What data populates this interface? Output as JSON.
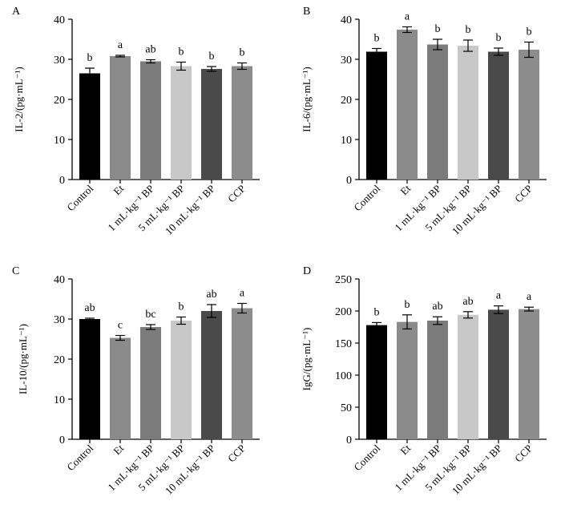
{
  "categories": [
    "Control",
    "Et",
    "1 mL·kg⁻¹ BP",
    "5 mL·kg⁻¹ BP",
    "10 mL·kg⁻¹ BP",
    "CCP"
  ],
  "bar_colors": [
    "#000000",
    "#8a8a8a",
    "#7b7b7b",
    "#c8c8c8",
    "#4a4a4a",
    "#8c8c8c"
  ],
  "chart_data": [
    {
      "panel": "A",
      "type": "bar",
      "ylabel": "IL-2/(pg·mL⁻¹)",
      "ylim": [
        0,
        40
      ],
      "yticks": [
        0,
        10,
        20,
        30,
        40
      ],
      "categories": [
        "Control",
        "Et",
        "1 mL·kg⁻¹ BP",
        "5 mL·kg⁻¹ BP",
        "10 mL·kg⁻¹ BP",
        "CCP"
      ],
      "values": [
        26.5,
        30.8,
        29.5,
        28.3,
        27.6,
        28.3
      ],
      "errors": [
        1.3,
        0.2,
        0.4,
        1.0,
        0.6,
        0.8
      ],
      "significance": [
        "b",
        "a",
        "ab",
        "b",
        "b",
        "b"
      ]
    },
    {
      "panel": "B",
      "type": "bar",
      "ylabel": "IL-6/(pg·mL⁻¹)",
      "ylim": [
        0,
        40
      ],
      "yticks": [
        0,
        10,
        20,
        30,
        40
      ],
      "categories": [
        "Control",
        "Et",
        "1 mL·kg⁻¹ BP",
        "5 mL·kg⁻¹ BP",
        "10 mL·kg⁻¹ BP",
        "CCP"
      ],
      "values": [
        31.9,
        37.4,
        33.7,
        33.4,
        31.9,
        32.4
      ],
      "errors": [
        0.8,
        0.7,
        1.3,
        1.4,
        0.9,
        1.9
      ],
      "significance": [
        "b",
        "a",
        "b",
        "b",
        "b",
        "b"
      ]
    },
    {
      "panel": "C",
      "type": "bar",
      "ylabel": "IL-10/(pg·mL⁻¹)",
      "ylim": [
        0,
        40
      ],
      "yticks": [
        0,
        10,
        20,
        30,
        40
      ],
      "categories": [
        "Control",
        "Et",
        "1 mL·kg⁻¹ BP",
        "5 mL·kg⁻¹ BP",
        "10 mL·kg⁻¹ BP",
        "CCP"
      ],
      "values": [
        30.0,
        25.3,
        28.0,
        29.6,
        32.0,
        32.7
      ],
      "errors": [
        0.2,
        0.6,
        0.6,
        0.9,
        1.6,
        1.2
      ],
      "significance": [
        "ab",
        "c",
        "bc",
        "b",
        "ab",
        "a"
      ]
    },
    {
      "panel": "D",
      "type": "bar",
      "ylabel": "IgG/(pg·mL⁻¹)",
      "ylim": [
        0,
        250
      ],
      "yticks": [
        0,
        50,
        100,
        150,
        200,
        250
      ],
      "categories": [
        "Control",
        "Et",
        "1 mL·kg⁻¹ BP",
        "5 mL·kg⁻¹ BP",
        "10 mL·kg⁻¹ BP",
        "CCP"
      ],
      "values": [
        178,
        183,
        185,
        194,
        202,
        203
      ],
      "errors": [
        4,
        11,
        6,
        5,
        6,
        3
      ],
      "significance": [
        "b",
        "b",
        "ab",
        "ab",
        "a",
        "a"
      ]
    }
  ]
}
